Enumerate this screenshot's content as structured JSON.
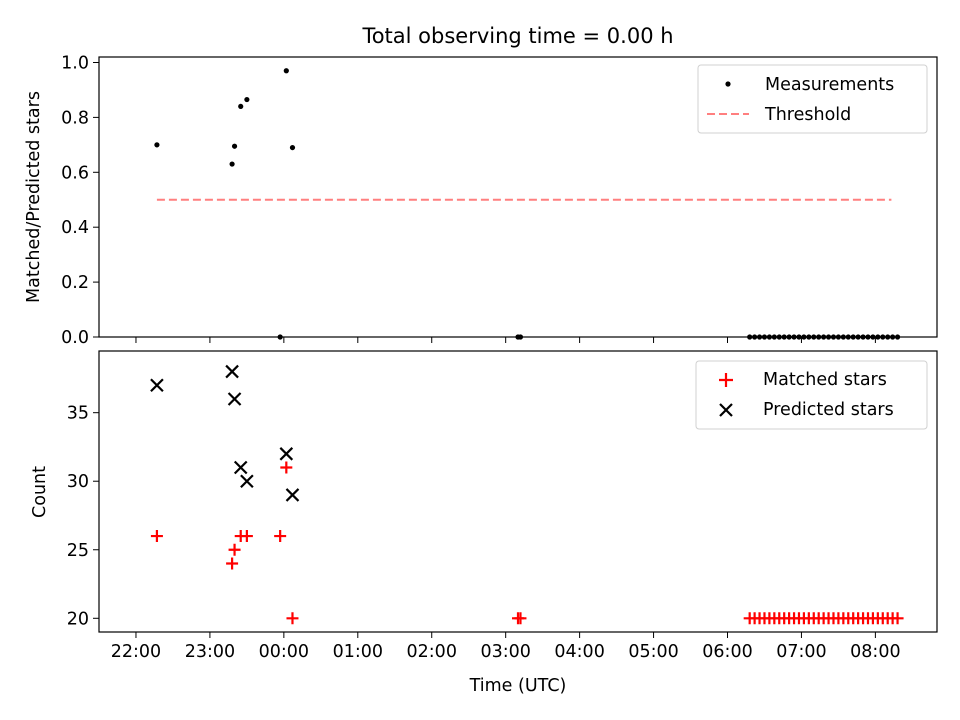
{
  "title": "Total observing time = 0.00 h",
  "colors": {
    "measurement": "#000000",
    "threshold": "#ff7f7f",
    "matched": "#ff0000",
    "predicted": "#000000"
  },
  "chart_data": [
    {
      "type": "scatter",
      "ylabel": "Matched/Predicted stars",
      "xlabel": "",
      "ylim": [
        0.0,
        1.02
      ],
      "yticks": [
        "0.0",
        "0.2",
        "0.4",
        "0.6",
        "0.8",
        "1.0"
      ],
      "xticks": [
        "22:00",
        "23:00",
        "00:00",
        "01:00",
        "02:00",
        "03:00",
        "04:00",
        "05:00",
        "06:00",
        "07:00",
        "08:00"
      ],
      "legend": {
        "placement": "upper right",
        "entries": [
          "Measurements",
          "Threshold"
        ]
      },
      "threshold": {
        "name": "Threshold",
        "value": 0.5,
        "x_range": [
          "22:17",
          "08:13"
        ],
        "style": "dashed"
      },
      "series": [
        {
          "name": "Measurements",
          "marker": "dot",
          "x": [
            "22:17",
            "23:18",
            "23:20",
            "23:25",
            "23:30",
            "23:57",
            "00:02",
            "00:07",
            "03:10",
            "03:12",
            "06:18",
            "06:22",
            "06:26",
            "06:30",
            "06:34",
            "06:38",
            "06:42",
            "06:46",
            "06:50",
            "06:54",
            "06:58",
            "07:02",
            "07:06",
            "07:10",
            "07:14",
            "07:18",
            "07:22",
            "07:26",
            "07:30",
            "07:34",
            "07:38",
            "07:42",
            "07:46",
            "07:50",
            "07:54",
            "07:58",
            "08:02",
            "08:06",
            "08:10",
            "08:14",
            "08:18"
          ],
          "y": [
            0.7,
            0.63,
            0.695,
            0.84,
            0.865,
            0.0,
            0.97,
            0.69,
            0.0,
            0.0,
            0,
            0,
            0,
            0,
            0,
            0,
            0,
            0,
            0,
            0,
            0,
            0,
            0,
            0,
            0,
            0,
            0,
            0,
            0,
            0,
            0,
            0,
            0,
            0,
            0,
            0,
            0,
            0,
            0,
            0,
            0
          ]
        }
      ]
    },
    {
      "type": "scatter",
      "ylabel": "Count",
      "xlabel": "Time (UTC)",
      "ylim": [
        19.0,
        39.5
      ],
      "yticks": [
        "20",
        "25",
        "30",
        "35"
      ],
      "xticks": [
        "22:00",
        "23:00",
        "00:00",
        "01:00",
        "02:00",
        "03:00",
        "04:00",
        "05:00",
        "06:00",
        "07:00",
        "08:00"
      ],
      "legend": {
        "placement": "upper right",
        "entries": [
          "Matched stars",
          "Predicted stars"
        ]
      },
      "series": [
        {
          "name": "Matched stars",
          "marker": "plus",
          "x": [
            "22:17",
            "23:18",
            "23:20",
            "23:25",
            "23:30",
            "23:57",
            "00:02",
            "00:07",
            "03:10",
            "03:12",
            "06:18",
            "06:22",
            "06:26",
            "06:30",
            "06:34",
            "06:38",
            "06:42",
            "06:46",
            "06:50",
            "06:54",
            "06:58",
            "07:02",
            "07:06",
            "07:10",
            "07:14",
            "07:18",
            "07:22",
            "07:26",
            "07:30",
            "07:34",
            "07:38",
            "07:42",
            "07:46",
            "07:50",
            "07:54",
            "07:58",
            "08:02",
            "08:06",
            "08:10",
            "08:14",
            "08:18"
          ],
          "y": [
            26,
            24,
            25,
            26,
            26,
            26,
            31,
            20,
            20,
            20,
            20,
            20,
            20,
            20,
            20,
            20,
            20,
            20,
            20,
            20,
            20,
            20,
            20,
            20,
            20,
            20,
            20,
            20,
            20,
            20,
            20,
            20,
            20,
            20,
            20,
            20,
            20,
            20,
            20,
            20,
            20
          ]
        },
        {
          "name": "Predicted stars",
          "marker": "x",
          "x": [
            "22:17",
            "23:18",
            "23:20",
            "23:25",
            "23:30",
            "00:02",
            "00:07"
          ],
          "y": [
            37,
            38,
            36,
            31,
            30,
            32,
            29
          ]
        }
      ]
    }
  ]
}
